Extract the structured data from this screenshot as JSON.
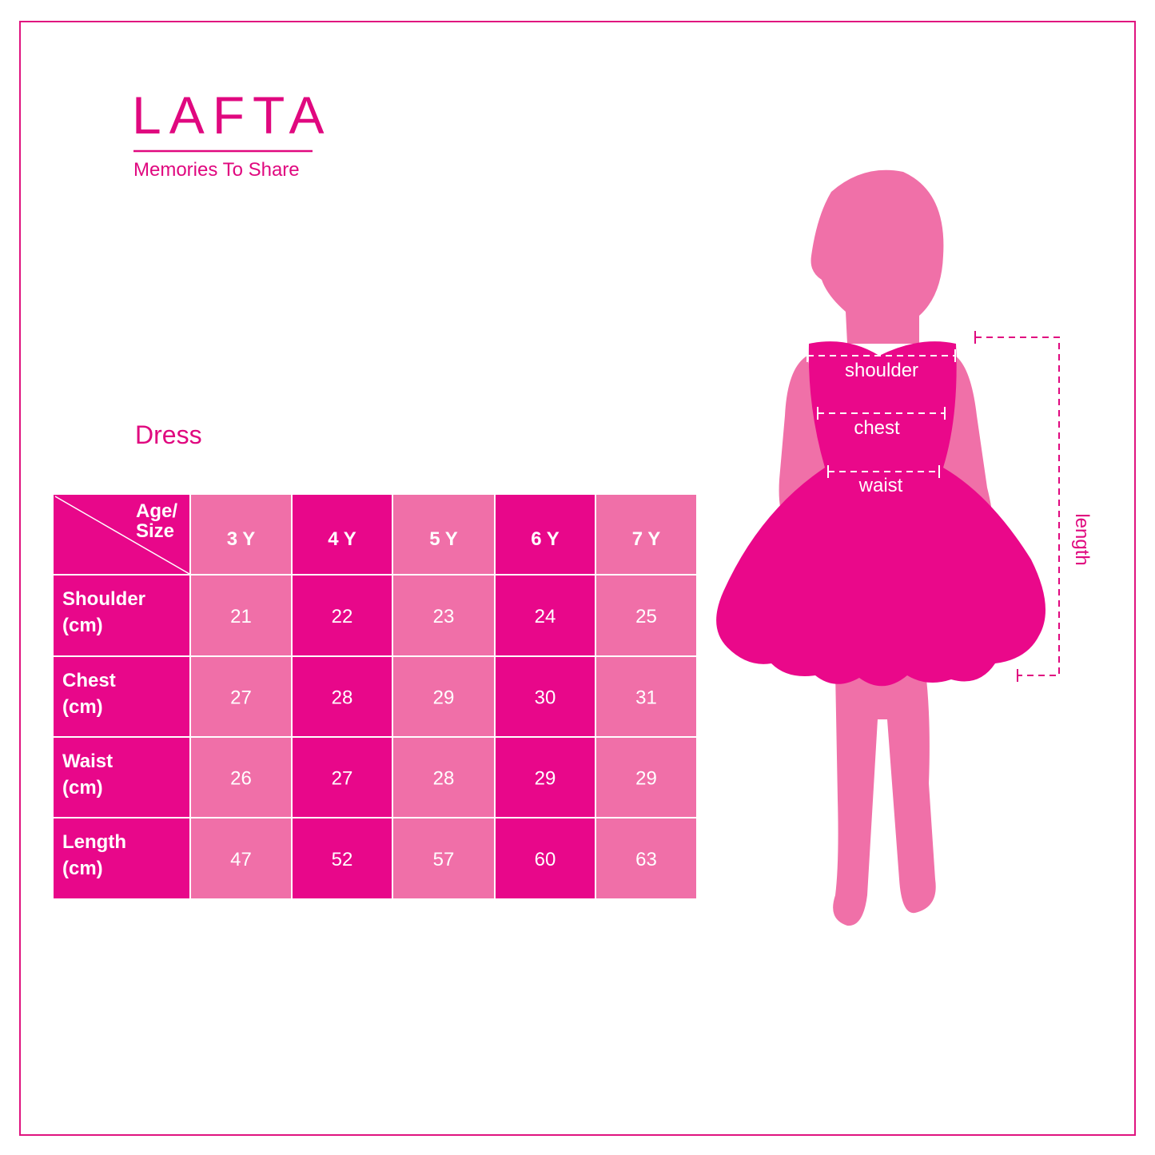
{
  "brand": {
    "name": "LAFTA",
    "tagline": "Memories To Share"
  },
  "section_title": "Dress",
  "table": {
    "corner": [
      "Age/",
      "Size"
    ],
    "columns": [
      "3 Y",
      "4 Y",
      "5 Y",
      "6 Y",
      "7 Y"
    ],
    "rows": [
      {
        "label": [
          "Shoulder",
          "(cm)"
        ],
        "values": [
          21,
          22,
          23,
          24,
          25
        ]
      },
      {
        "label": [
          "Chest",
          "(cm)"
        ],
        "values": [
          27,
          28,
          29,
          30,
          31
        ]
      },
      {
        "label": [
          "Waist",
          "(cm)"
        ],
        "values": [
          26,
          27,
          28,
          29,
          29
        ]
      },
      {
        "label": [
          "Length",
          "(cm)"
        ],
        "values": [
          47,
          52,
          57,
          60,
          63
        ]
      }
    ]
  },
  "figure": {
    "labels": [
      "shoulder",
      "chest",
      "waist"
    ],
    "length_label": "length"
  }
}
